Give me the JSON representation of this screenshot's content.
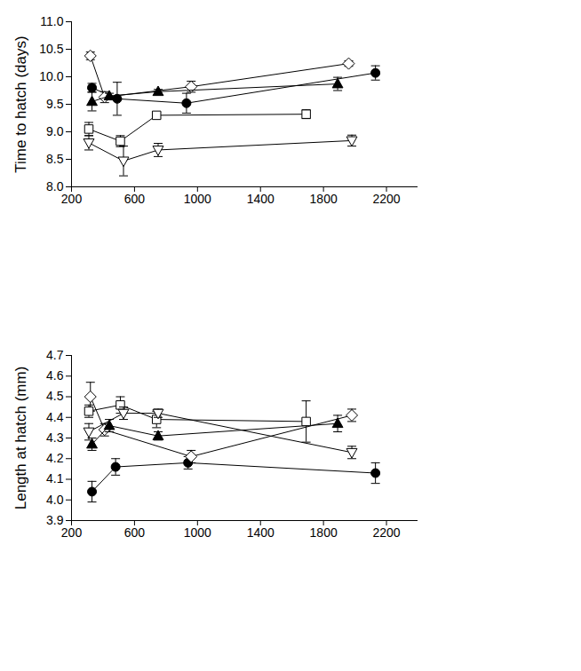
{
  "chart_data": [
    {
      "type": "line",
      "ylabel": "Time to hatch (days)",
      "xlim": [
        200,
        2400
      ],
      "xticks": [
        200,
        600,
        1000,
        1400,
        1800,
        2200
      ],
      "ylim": [
        8.0,
        11.0
      ],
      "yticks": [
        {
          "value": 8,
          "label": "8.0"
        },
        8.5,
        {
          "value": 9,
          "label": "9.0"
        },
        9.5,
        {
          "value": 10,
          "label": "10.0"
        },
        10.5,
        {
          "value": 11,
          "label": "11.0"
        }
      ],
      "series": [
        {
          "marker": "circle",
          "color": "#000000",
          "x": [
            330,
            490,
            930,
            2130
          ],
          "values": [
            9.8,
            9.6,
            9.52,
            10.07
          ],
          "errors": [
            0.08,
            0.3,
            0.18,
            0.13
          ]
        },
        {
          "marker": "diamond-open",
          "color": "#000000",
          "x": [
            320,
            410,
            960,
            1960
          ],
          "values": [
            10.38,
            9.63,
            9.82,
            10.24
          ],
          "errors": [
            0.07,
            0.1,
            0.1,
            0.05
          ]
        },
        {
          "marker": "triangle",
          "color": "#000000",
          "x": [
            330,
            440,
            750,
            1890
          ],
          "values": [
            9.55,
            9.65,
            9.73,
            9.87
          ],
          "errors": [
            0.17,
            0.05,
            0.04,
            0.12
          ]
        },
        {
          "marker": "square-open",
          "color": "#000000",
          "x": [
            310,
            510,
            740,
            1690
          ],
          "values": [
            9.05,
            8.83,
            9.3,
            9.32
          ],
          "errors": [
            0.12,
            0.1,
            0.05,
            0.08
          ]
        },
        {
          "marker": "triangle-down-open",
          "color": "#000000",
          "x": [
            310,
            530,
            750,
            1980
          ],
          "values": [
            8.8,
            8.47,
            8.67,
            8.84
          ],
          "errors": [
            0.13,
            0.27,
            0.12,
            0.1
          ]
        }
      ]
    },
    {
      "type": "line",
      "ylabel": "Length at hatch (mm)",
      "xlim": [
        200,
        2400
      ],
      "xticks": [
        200,
        600,
        1000,
        1400,
        1800,
        2200
      ],
      "ylim": [
        3.9,
        4.7
      ],
      "yticks": [
        3.9,
        {
          "value": 4,
          "label": "4.0"
        },
        4.1,
        4.2,
        4.3,
        4.4,
        4.5,
        4.6,
        4.7
      ],
      "series": [
        {
          "marker": "circle",
          "color": "#000000",
          "x": [
            330,
            480,
            940,
            2130
          ],
          "values": [
            4.04,
            4.16,
            4.18,
            4.13
          ],
          "errors": [
            0.05,
            0.04,
            0.03,
            0.05
          ]
        },
        {
          "marker": "diamond-open",
          "color": "#000000",
          "x": [
            320,
            410,
            960,
            1980
          ],
          "values": [
            4.5,
            4.34,
            4.21,
            4.41
          ],
          "errors": [
            0.07,
            0.03,
            0.03,
            0.03
          ]
        },
        {
          "marker": "triangle",
          "color": "#000000",
          "x": [
            330,
            440,
            750,
            1890
          ],
          "values": [
            4.27,
            4.36,
            4.31,
            4.37
          ],
          "errors": [
            0.03,
            0.03,
            0.02,
            0.04
          ]
        },
        {
          "marker": "square-open",
          "color": "#000000",
          "x": [
            310,
            510,
            740,
            1690
          ],
          "values": [
            4.43,
            4.46,
            4.39,
            4.38
          ],
          "errors": [
            0.03,
            0.04,
            0.04,
            0.1
          ]
        },
        {
          "marker": "triangle-down-open",
          "color": "#000000",
          "x": [
            310,
            530,
            750,
            1980
          ],
          "values": [
            4.33,
            4.42,
            4.42,
            4.23
          ],
          "errors": [
            0.04,
            0.03,
            0.02,
            0.03
          ]
        }
      ]
    }
  ]
}
